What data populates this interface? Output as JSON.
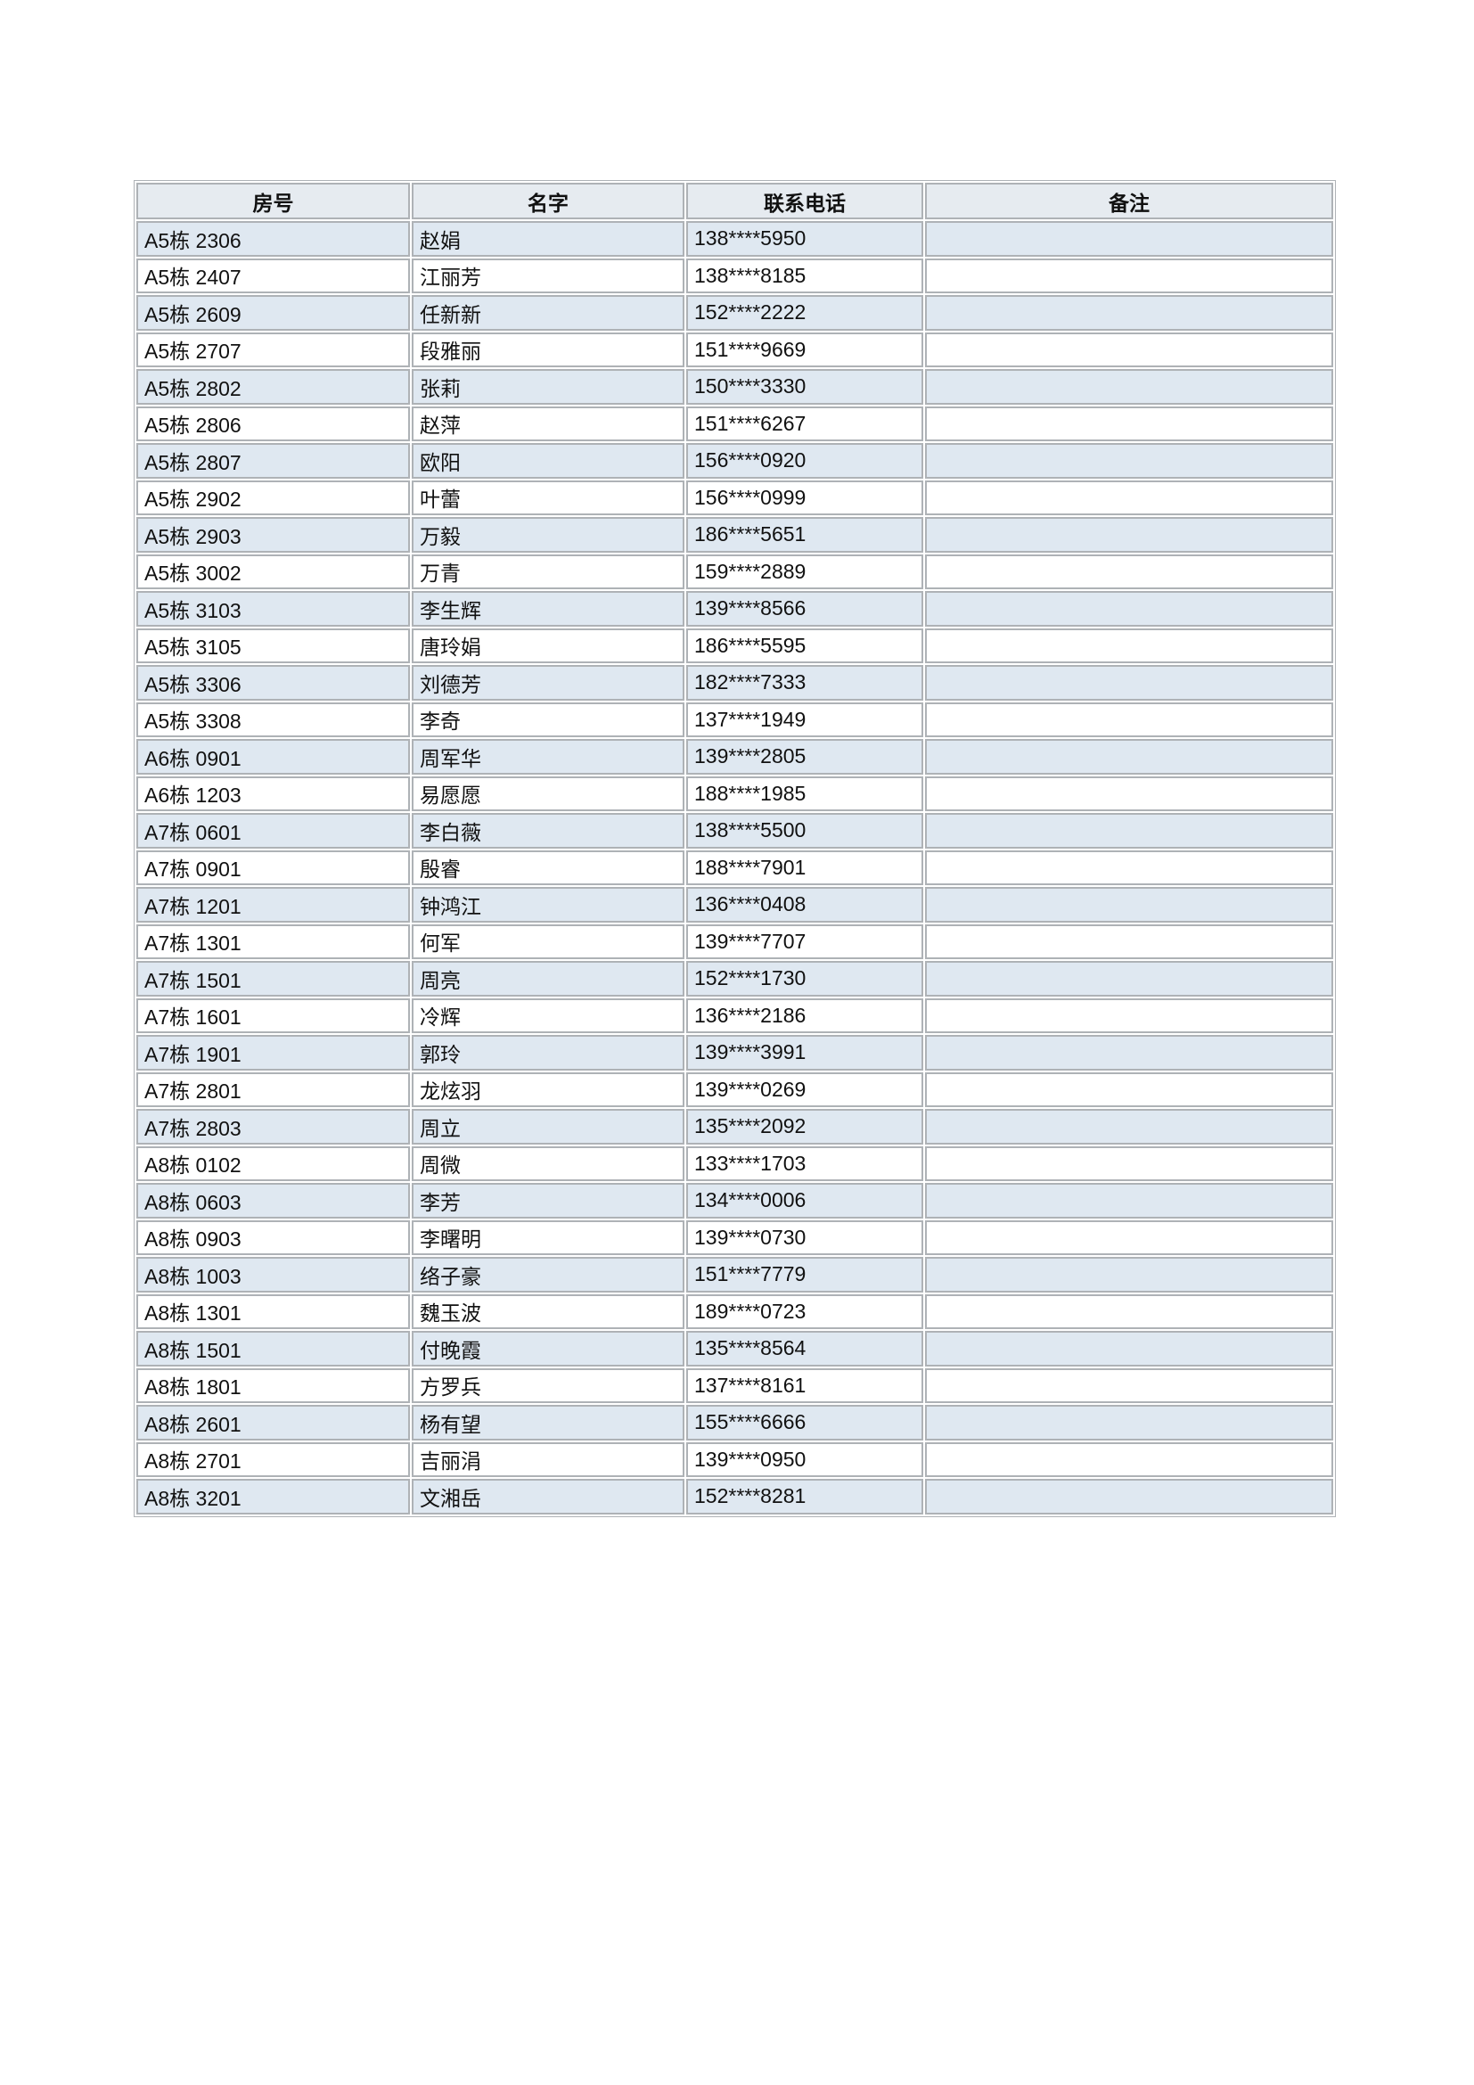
{
  "table": {
    "columns": [
      "房号",
      "名字",
      "联系电话",
      "备注"
    ],
    "colors": {
      "header_bg": "#e6ebf0",
      "stripe_bg": "#dfe8f1",
      "row_bg": "#ffffff",
      "border": "#aeb2b6",
      "text": "#111111"
    },
    "rows": [
      [
        "A5栋 2306",
        "赵娟",
        "138****5950",
        ""
      ],
      [
        "A5栋 2407",
        "江丽芳",
        "138****8185",
        ""
      ],
      [
        "A5栋 2609",
        "任新新",
        "152****2222",
        ""
      ],
      [
        "A5栋 2707",
        "段雅丽",
        "151****9669",
        ""
      ],
      [
        "A5栋 2802",
        "张莉",
        "150****3330",
        ""
      ],
      [
        "A5栋 2806",
        "赵萍",
        "151****6267",
        ""
      ],
      [
        "A5栋 2807",
        "欧阳",
        "156****0920",
        ""
      ],
      [
        "A5栋 2902",
        "叶蕾",
        "156****0999",
        ""
      ],
      [
        "A5栋 2903",
        "万毅",
        "186****5651",
        ""
      ],
      [
        "A5栋 3002",
        "万青",
        "159****2889",
        ""
      ],
      [
        "A5栋 3103",
        "李生辉",
        "139****8566",
        ""
      ],
      [
        "A5栋 3105",
        "唐玲娟",
        "186****5595",
        ""
      ],
      [
        "A5栋 3306",
        "刘德芳",
        "182****7333",
        ""
      ],
      [
        "A5栋 3308",
        "李奇",
        "137****1949",
        ""
      ],
      [
        "A6栋 0901",
        "周军华",
        "139****2805",
        ""
      ],
      [
        "A6栋 1203",
        "易愿愿",
        "188****1985",
        ""
      ],
      [
        "A7栋 0601",
        "李白薇",
        "138****5500",
        ""
      ],
      [
        "A7栋 0901",
        "殷睿",
        "188****7901",
        ""
      ],
      [
        "A7栋 1201",
        "钟鸿江",
        "136****0408",
        ""
      ],
      [
        "A7栋 1301",
        "何军",
        "139****7707",
        ""
      ],
      [
        "A7栋 1501",
        "周亮",
        "152****1730",
        ""
      ],
      [
        "A7栋 1601",
        "冷辉",
        "136****2186",
        ""
      ],
      [
        "A7栋 1901",
        "郭玲",
        "139****3991",
        ""
      ],
      [
        "A7栋 2801",
        "龙炫羽",
        "139****0269",
        ""
      ],
      [
        "A7栋 2803",
        "周立",
        "135****2092",
        ""
      ],
      [
        "A8栋 0102",
        "周微",
        "133****1703",
        ""
      ],
      [
        "A8栋 0603",
        "李芳",
        "134****0006",
        ""
      ],
      [
        "A8栋 0903",
        "李曙明",
        "139****0730",
        ""
      ],
      [
        "A8栋 1003",
        "络子豪",
        "151****7779",
        ""
      ],
      [
        "A8栋 1301",
        "魏玉波",
        "189****0723",
        ""
      ],
      [
        "A8栋 1501",
        "付晚霞",
        "135****8564",
        ""
      ],
      [
        "A8栋 1801",
        "方罗兵",
        "137****8161",
        ""
      ],
      [
        "A8栋 2601",
        "杨有望",
        "155****6666",
        ""
      ],
      [
        "A8栋 2701",
        "吉丽涓",
        "139****0950",
        ""
      ],
      [
        "A8栋 3201",
        "文湘岳",
        "152****8281",
        ""
      ]
    ]
  }
}
